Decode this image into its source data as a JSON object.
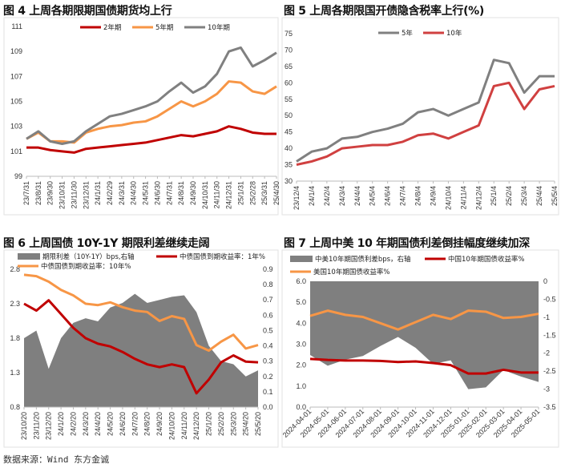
{
  "source": "数据来源：Wind 东方金诚",
  "chart_data": [
    {
      "id": "c4",
      "type": "line",
      "title": "图 4  上周各期限期国债期货均上行",
      "categories": [
        "23/7/31",
        "23/8/31",
        "23/9/30",
        "23/10/31",
        "23/11/30",
        "23/12/31",
        "24/1/31",
        "24/2/29",
        "24/3/31",
        "24/4/30",
        "24/5/31",
        "24/6/30",
        "24/7/31",
        "24/8/31",
        "24/9/30",
        "24/10/31",
        "24/11/30",
        "24/12/31",
        "25/1/31",
        "25/2/28",
        "25/3/31",
        "25/4/30"
      ],
      "left_axis": {
        "min": 99,
        "max": 111,
        "ticks": [
          99,
          101,
          103,
          105,
          107,
          109,
          111
        ]
      },
      "legend": "top",
      "series": [
        {
          "name": "2年期",
          "color": "#c00000",
          "axis": "left",
          "values": [
            101.3,
            101.3,
            101.1,
            101.0,
            100.9,
            101.2,
            101.3,
            101.4,
            101.5,
            101.6,
            101.7,
            101.9,
            102.1,
            102.3,
            102.2,
            102.4,
            102.6,
            103.0,
            102.8,
            102.5,
            102.4,
            102.4
          ]
        },
        {
          "name": "5年期",
          "color": "#f79646",
          "axis": "left",
          "values": [
            102.0,
            102.5,
            101.8,
            101.8,
            101.7,
            102.5,
            102.8,
            103.0,
            103.1,
            103.3,
            103.4,
            103.8,
            104.4,
            105.0,
            104.6,
            105.0,
            105.6,
            106.6,
            106.5,
            105.8,
            105.6,
            106.2
          ]
        },
        {
          "name": "10年期",
          "color": "#808080",
          "axis": "left",
          "values": [
            102.0,
            102.6,
            101.8,
            101.6,
            101.8,
            102.6,
            103.2,
            103.8,
            104.0,
            104.3,
            104.6,
            105.0,
            105.8,
            106.5,
            105.7,
            106.2,
            107.2,
            109.0,
            109.3,
            107.8,
            108.3,
            108.9
          ]
        }
      ]
    },
    {
      "id": "c5",
      "type": "line",
      "title": "图 5  上周各期限国开债隐含税率上行(%)",
      "categories": [
        "23/12/4",
        "24/1/4",
        "24/2/4",
        "24/3/4",
        "24/4/4",
        "24/5/4",
        "24/6/4",
        "24/7/4",
        "24/8/4",
        "24/9/4",
        "24/10/4",
        "24/11/4",
        "24/12/4",
        "25/1/4",
        "25/2/4",
        "25/3/4",
        "25/4/4",
        "25/5/4"
      ],
      "left_axis": {
        "min": 30,
        "max": 75,
        "ticks": [
          30,
          35,
          40,
          45,
          50,
          55,
          60,
          65,
          70,
          75
        ]
      },
      "legend": "top",
      "series": [
        {
          "name": "5年",
          "color": "#808080",
          "axis": "left",
          "values": [
            36,
            39,
            40,
            43,
            43.5,
            45,
            46,
            47.5,
            51,
            52,
            50,
            52,
            54,
            67,
            66,
            57,
            62,
            62
          ]
        },
        {
          "name": "10年",
          "color": "#d04040",
          "axis": "left",
          "values": [
            35,
            36,
            37.5,
            40,
            40.5,
            41,
            41,
            42,
            44,
            44.5,
            43,
            45,
            47,
            59,
            60,
            52,
            58,
            59
          ]
        }
      ]
    },
    {
      "id": "c6",
      "type": "line",
      "title": "图 6  上周国债 10Y-1Y 期限利差继续走阔",
      "categories": [
        "23/10/20",
        "23/11/20",
        "23/12/20",
        "24/1/20",
        "24/2/20",
        "24/3/20",
        "24/4/20",
        "24/5/20",
        "24/6/20",
        "24/7/20",
        "24/8/20",
        "24/9/20",
        "24/10/20",
        "24/11/20",
        "24/12/20",
        "25/1/20",
        "25/2/20",
        "25/3/20",
        "25/4/20",
        "25/5/20"
      ],
      "left_axis": {
        "min": 0.8,
        "max": 2.8,
        "ticks": [
          0.8,
          1.3,
          1.8,
          2.3,
          2.8
        ]
      },
      "right_axis": {
        "min": 0,
        "max": 0.9,
        "ticks": [
          0.0,
          0.1,
          0.2,
          0.3,
          0.4,
          0.5,
          0.6,
          0.7,
          0.8,
          0.9
        ]
      },
      "legend": "top",
      "series": [
        {
          "name": "期限利差（10Y-1Y）bps,右轴",
          "color": "#7f7f7f",
          "axis": "right",
          "kind": "area",
          "values": [
            0.45,
            0.5,
            0.25,
            0.45,
            0.55,
            0.58,
            0.56,
            0.65,
            0.68,
            0.74,
            0.68,
            0.7,
            0.72,
            0.73,
            0.62,
            0.4,
            0.3,
            0.28,
            0.2,
            0.24
          ]
        },
        {
          "name": "中债国债到期收益率：1年%",
          "color": "#c00000",
          "axis": "left",
          "values": [
            2.3,
            2.2,
            2.35,
            2.15,
            1.95,
            1.8,
            1.72,
            1.68,
            1.6,
            1.5,
            1.42,
            1.38,
            1.42,
            1.38,
            1.0,
            1.2,
            1.45,
            1.55,
            1.46,
            1.45
          ]
        },
        {
          "name": "中债国债到期收益率：10年%",
          "color": "#f79646",
          "axis": "left",
          "values": [
            2.72,
            2.7,
            2.62,
            2.5,
            2.42,
            2.3,
            2.28,
            2.32,
            2.25,
            2.2,
            2.18,
            2.05,
            2.12,
            2.08,
            1.7,
            1.62,
            1.75,
            1.85,
            1.65,
            1.7
          ]
        }
      ]
    },
    {
      "id": "c7",
      "type": "line",
      "title": "图 7  上周中美 10 年期国债利差倒挂幅度继续加深",
      "categories": [
        "2024-04-01",
        "2024-05-01",
        "2024-06-01",
        "2024-07-01",
        "2024-08-01",
        "2024-09-01",
        "2024-10-01",
        "2024-11-01",
        "2024-12-01",
        "2025-01-01",
        "2025-02-01",
        "2025-03-01",
        "2025-04-01",
        "2025-05-01"
      ],
      "left_axis": {
        "min": 0,
        "max": 6,
        "ticks": [
          "0.0",
          "1.0",
          "2.0",
          "3.0",
          "4.0",
          "5.0",
          "6.0"
        ]
      },
      "right_axis": {
        "min": -3.5,
        "max": 0,
        "ticks": [
          "-3.5",
          "-3",
          "-2.5",
          "-2",
          "-1.5",
          "-1",
          "-0.5",
          "0"
        ]
      },
      "legend": "top",
      "series": [
        {
          "name": "中美10年期国债利差bps，右轴",
          "color": "#7f7f7f",
          "axis": "right",
          "kind": "area",
          "values": [
            -2.05,
            -2.35,
            -2.18,
            -2.08,
            -1.8,
            -1.55,
            -1.85,
            -2.3,
            -2.2,
            -3.0,
            -2.95,
            -2.47,
            -2.65,
            -2.8
          ]
        },
        {
          "name": "中国10年期国债收益率%",
          "color": "#c00000",
          "axis": "left",
          "values": [
            2.3,
            2.25,
            2.22,
            2.22,
            2.2,
            2.15,
            2.18,
            2.1,
            2.0,
            1.6,
            1.6,
            1.78,
            1.65,
            1.65
          ]
        },
        {
          "name": "美国10年期国债收益率%",
          "color": "#f79646",
          "axis": "left",
          "values": [
            4.35,
            4.6,
            4.4,
            4.3,
            4.0,
            3.7,
            4.05,
            4.4,
            4.2,
            4.6,
            4.55,
            4.25,
            4.3,
            4.45
          ]
        }
      ]
    }
  ]
}
